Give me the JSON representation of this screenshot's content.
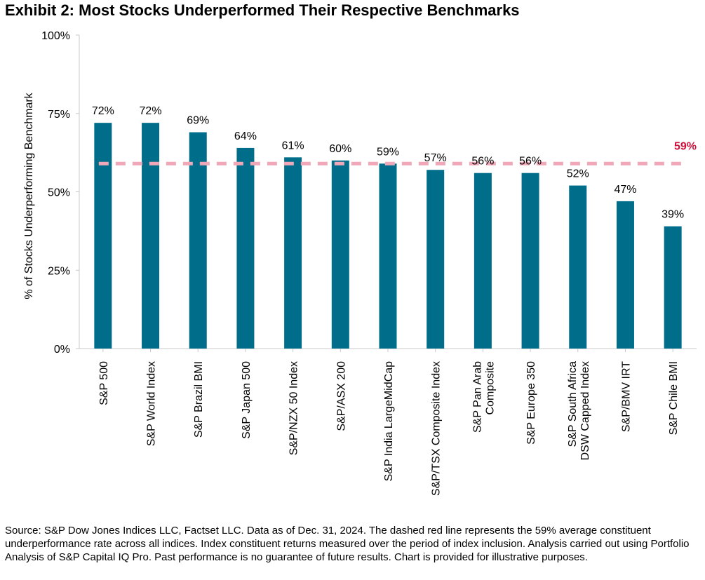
{
  "title": "Exhibit 2: Most Stocks Underperformed Their Respective Benchmarks",
  "footnote": "Source: S&P Dow Jones Indices LLC, Factset LLC. Data as of Dec. 31, 2024. The dashed red line represents the 59% average constituent underperformance rate across all indices. Index constituent returns measured over the period of index inclusion. Analysis carried out using Portfolio Analysis of S&P Capital IQ Pro. Past performance is no guarantee of future results. Chart is provided for illustrative purposes.",
  "chart_data": {
    "type": "bar",
    "categories": [
      [
        "S&P 500"
      ],
      [
        "S&P World Index"
      ],
      [
        "S&P Brazil BMI"
      ],
      [
        "S&P Japan 500"
      ],
      [
        "S&P/NZX 50 Index"
      ],
      [
        "S&P/ASX 200"
      ],
      [
        "S&P India LargeMidCap"
      ],
      [
        "S&P/TSX Composite Index"
      ],
      [
        "S&P Pan Arab",
        "Composite"
      ],
      [
        "S&P Europe 350"
      ],
      [
        "S&P South Africa",
        "DSW Capped Index"
      ],
      [
        "S&P/BMV IRT"
      ],
      [
        "S&P Chile BMI"
      ]
    ],
    "values": [
      72,
      72,
      69,
      64,
      61,
      60,
      59,
      57,
      56,
      56,
      52,
      47,
      39
    ],
    "value_labels": [
      "72%",
      "72%",
      "69%",
      "64%",
      "61%",
      "60%",
      "59%",
      "57%",
      "56%",
      "56%",
      "52%",
      "47%",
      "39%"
    ],
    "ylabel": "% of Stocks Underperforming Benchmark",
    "ylim": [
      0,
      100
    ],
    "yticks": [
      0,
      25,
      50,
      75,
      100
    ],
    "ytick_labels": [
      "0%",
      "25%",
      "50%",
      "75%",
      "100%"
    ],
    "reference_line": {
      "value": 59,
      "label": "59%",
      "style": "dashed",
      "color": "#f0a8b8",
      "label_color": "#d0103a"
    },
    "bar_color": "#006e8a",
    "grid": false
  }
}
